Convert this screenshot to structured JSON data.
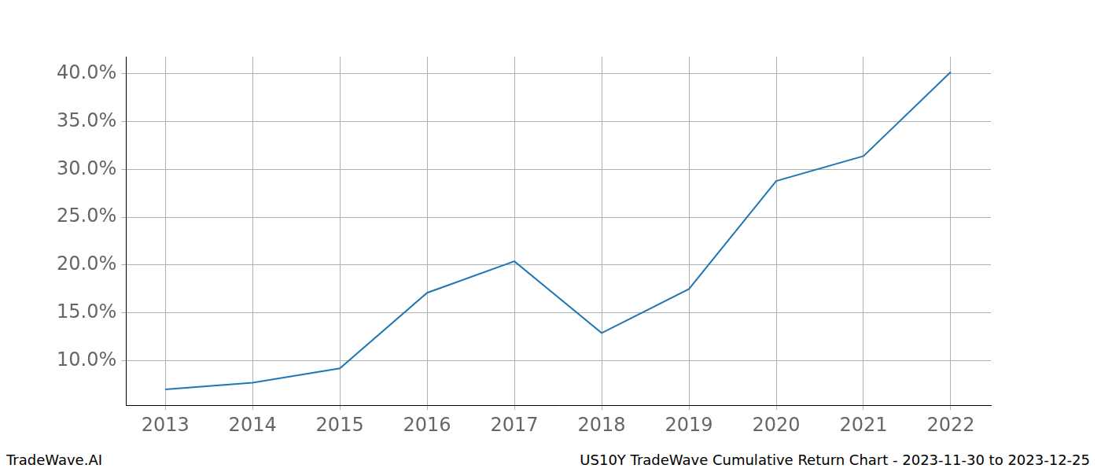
{
  "chart_data": {
    "type": "line",
    "x": [
      2013,
      2014,
      2015,
      2016,
      2017,
      2018,
      2019,
      2020,
      2021,
      2022
    ],
    "values": [
      7.0,
      7.7,
      9.2,
      17.1,
      20.4,
      12.9,
      17.5,
      28.8,
      31.4,
      40.2
    ],
    "color": "#1f77b4",
    "xlim": [
      2012.55,
      2022.46
    ],
    "xticks": [
      2013,
      2014,
      2015,
      2016,
      2017,
      2018,
      2019,
      2020,
      2021,
      2022
    ],
    "ylim": [
      5.34,
      41.8
    ],
    "yticks": [
      {
        "value": 10,
        "label": "10.0%"
      },
      {
        "value": 15,
        "label": "15.0%"
      },
      {
        "value": 20,
        "label": "20.0%"
      },
      {
        "value": 25,
        "label": "25.0%"
      },
      {
        "value": 30,
        "label": "30.0%"
      },
      {
        "value": 35,
        "label": "35.0%"
      },
      {
        "value": 40,
        "label": "40.0%"
      }
    ],
    "grid": true,
    "annotations": [
      "TradeWave.AI",
      "US10Y TradeWave Cumulative Return Chart - 2023-11-30 to 2023-12-25"
    ]
  }
}
